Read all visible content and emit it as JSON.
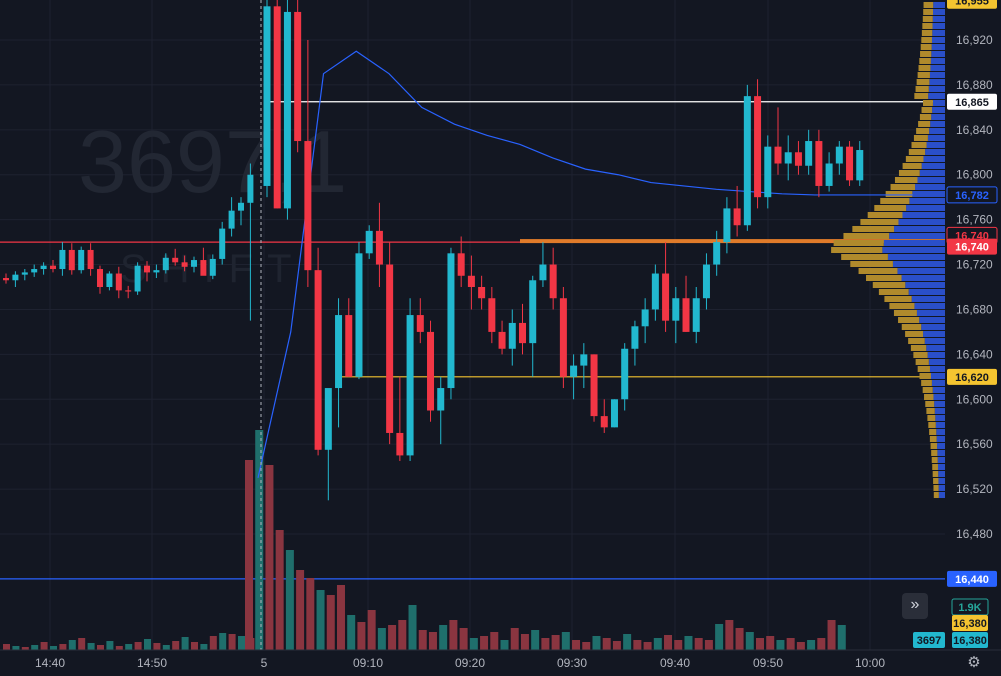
{
  "watermark": {
    "symbol": "3697,1",
    "subtitle": "SHIFT"
  },
  "colors": {
    "background": "#131722",
    "grid": "#1e2230",
    "up": "#22b8cf",
    "down": "#f23645",
    "vol_up": "#1f6f6c",
    "vol_down": "#8a3540",
    "vwap": "#2962ff",
    "profile_blue": "#2a4fc9",
    "profile_gold": "#b08a2c"
  },
  "chart_data": {
    "type": "candlestick",
    "y_range": [
      16500,
      16960
    ],
    "y_ticks": [
      "16,920",
      "16,880",
      "16,840",
      "16,800",
      "16,760",
      "16,720",
      "16,680",
      "16,640",
      "16,600",
      "16,560",
      "16,520",
      "16,480"
    ],
    "x_ticks": [
      "14:40",
      "14:50",
      "5",
      "09:10",
      "09:20",
      "09:30",
      "09:40",
      "09:50",
      "10:00"
    ],
    "candles_prev_session": [
      [
        16708,
        16712,
        16703,
        16706
      ],
      [
        16706,
        16714,
        16700,
        16711
      ],
      [
        16711,
        16716,
        16706,
        16713
      ],
      [
        16713,
        16720,
        16709,
        16716
      ],
      [
        16716,
        16722,
        16711,
        16719
      ],
      [
        16719,
        16724,
        16713,
        16716
      ],
      [
        16716,
        16740,
        16710,
        16733
      ],
      [
        16733,
        16739,
        16711,
        16715
      ],
      [
        16715,
        16736,
        16712,
        16733
      ],
      [
        16733,
        16739,
        16710,
        16716
      ],
      [
        16716,
        16719,
        16694,
        16700
      ],
      [
        16700,
        16714,
        16697,
        16712
      ],
      [
        16712,
        16718,
        16690,
        16697
      ],
      [
        16697,
        16701,
        16690,
        16696
      ],
      [
        16696,
        16722,
        16693,
        16719
      ],
      [
        16719,
        16723,
        16705,
        16713
      ],
      [
        16713,
        16720,
        16708,
        16715
      ],
      [
        16715,
        16730,
        16712,
        16726
      ],
      [
        16726,
        16734,
        16719,
        16722
      ],
      [
        16722,
        16728,
        16714,
        16718
      ],
      [
        16718,
        16727,
        16713,
        16724
      ],
      [
        16724,
        16735,
        16712,
        16710
      ],
      [
        16710,
        16729,
        16707,
        16725
      ],
      [
        16725,
        16758,
        16720,
        16752
      ],
      [
        16752,
        16780,
        16745,
        16768
      ],
      [
        16768,
        16780,
        16755,
        16775
      ],
      [
        16775,
        16810,
        16670,
        16800
      ]
    ],
    "candles_session": [
      [
        16790,
        16960,
        16780,
        16950
      ],
      [
        16950,
        16965,
        16770,
        16770
      ],
      [
        16770,
        16960,
        16760,
        16945
      ],
      [
        16945,
        16965,
        16820,
        16830
      ],
      [
        16830,
        16920,
        16700,
        16715
      ],
      [
        16715,
        16735,
        16550,
        16555
      ],
      [
        16555,
        16590,
        16510,
        16610
      ],
      [
        16610,
        16690,
        16575,
        16675
      ],
      [
        16675,
        16690,
        16620,
        16620
      ],
      [
        16620,
        16740,
        16618,
        16730
      ],
      [
        16730,
        16755,
        16725,
        16750
      ],
      [
        16750,
        16775,
        16700,
        16720
      ],
      [
        16720,
        16740,
        16560,
        16570
      ],
      [
        16570,
        16620,
        16545,
        16550
      ],
      [
        16550,
        16690,
        16545,
        16675
      ],
      [
        16675,
        16690,
        16650,
        16660
      ],
      [
        16660,
        16670,
        16580,
        16590
      ],
      [
        16590,
        16620,
        16560,
        16610
      ],
      [
        16610,
        16735,
        16600,
        16730
      ],
      [
        16730,
        16745,
        16700,
        16710
      ],
      [
        16710,
        16728,
        16680,
        16700
      ],
      [
        16700,
        16710,
        16680,
        16690
      ],
      [
        16690,
        16700,
        16650,
        16660
      ],
      [
        16660,
        16670,
        16640,
        16645
      ],
      [
        16645,
        16680,
        16630,
        16668
      ],
      [
        16668,
        16685,
        16640,
        16650
      ],
      [
        16650,
        16710,
        16620,
        16706
      ],
      [
        16706,
        16740,
        16700,
        16720
      ],
      [
        16720,
        16735,
        16680,
        16690
      ],
      [
        16690,
        16700,
        16610,
        16620
      ],
      [
        16620,
        16640,
        16600,
        16630
      ],
      [
        16630,
        16650,
        16610,
        16640
      ],
      [
        16640,
        16640,
        16580,
        16585
      ],
      [
        16585,
        16600,
        16570,
        16575
      ],
      [
        16575,
        16600,
        16575,
        16600
      ],
      [
        16600,
        16650,
        16590,
        16645
      ],
      [
        16645,
        16670,
        16630,
        16665
      ],
      [
        16665,
        16690,
        16650,
        16680
      ],
      [
        16680,
        16720,
        16670,
        16712
      ],
      [
        16712,
        16740,
        16660,
        16670
      ],
      [
        16670,
        16700,
        16650,
        16690
      ],
      [
        16690,
        16710,
        16660,
        16660
      ],
      [
        16660,
        16700,
        16650,
        16690
      ],
      [
        16690,
        16730,
        16680,
        16720
      ],
      [
        16720,
        16750,
        16710,
        16740
      ],
      [
        16740,
        16780,
        16730,
        16770
      ],
      [
        16770,
        16790,
        16745,
        16755
      ],
      [
        16755,
        16880,
        16750,
        16870
      ],
      [
        16870,
        16885,
        16770,
        16780
      ],
      [
        16780,
        16835,
        16770,
        16825
      ],
      [
        16825,
        16860,
        16800,
        16810
      ],
      [
        16810,
        16835,
        16795,
        16820
      ],
      [
        16820,
        16830,
        16800,
        16808
      ],
      [
        16808,
        16840,
        16800,
        16830
      ],
      [
        16830,
        16840,
        16780,
        16790
      ],
      [
        16790,
        16820,
        16785,
        16810
      ],
      [
        16810,
        16830,
        16800,
        16825
      ],
      [
        16825,
        16830,
        16790,
        16795
      ],
      [
        16795,
        16830,
        16790,
        16822
      ]
    ],
    "vwap_y_values": [
      16530,
      16660,
      16890,
      16910,
      16890,
      16860,
      16845,
      16835,
      16827,
      16815,
      16805,
      16800,
      16793,
      16790,
      16787,
      16785,
      16783,
      16782,
      16782,
      16782,
      16782
    ],
    "volume_profile_note": "bars at right edge",
    "price_levels": [
      {
        "label": "16,955",
        "price": 16955,
        "bg": "#f4c430",
        "fg": "#131722"
      },
      {
        "label": "16,865",
        "price": 16865,
        "bg": "#ffffff",
        "fg": "#131722"
      },
      {
        "label": "16,782",
        "price": 16782,
        "bg": "#131722",
        "fg": "#2962ff",
        "border": "#2962ff"
      },
      {
        "label": "16,740",
        "price": 16746,
        "bg": "#131722",
        "fg": "#f23645",
        "border": "#f23645"
      },
      {
        "label": "16,740",
        "price": 16736,
        "bg": "#f23645",
        "fg": "#ffffff"
      },
      {
        "label": "16,620",
        "price": 16620,
        "bg": "#f4c430",
        "fg": "#131722"
      },
      {
        "label": "16,440",
        "price": 16440,
        "bg": "#2962ff",
        "fg": "#ffffff"
      }
    ],
    "volume_tags": [
      {
        "label": "1.9K",
        "bg": "#131722",
        "fg": "#26a69a",
        "border": "#26a69a"
      },
      {
        "label": "16,380",
        "bg": "#f4c430",
        "fg": "#131722"
      },
      {
        "label": "16,380",
        "bg": "#22b8cf",
        "fg": "#131722"
      }
    ],
    "symbol_tag": {
      "label": "3697",
      "bg": "#22b8cf",
      "fg": "#131722"
    }
  },
  "controls": {
    "scroll_right": "»",
    "settings": "⚙"
  }
}
